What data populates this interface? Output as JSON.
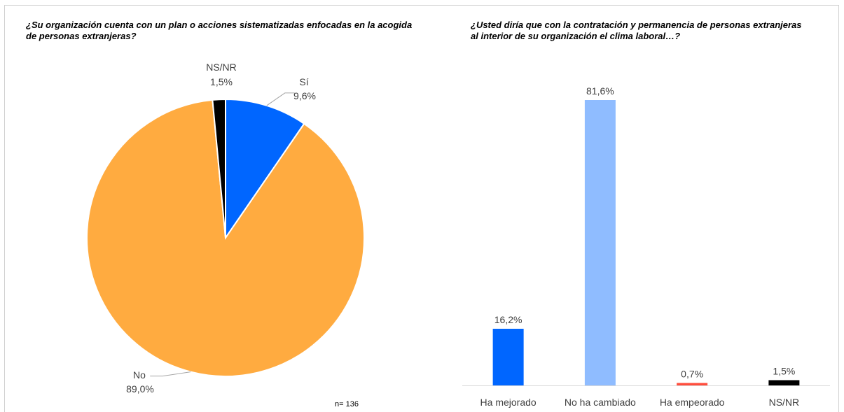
{
  "charts": {
    "left": {
      "title": "¿Su organización cuenta con un plan o acciones sistematizadas enfocadas en la acogida de personas extranjeras?",
      "note": "n= 136"
    },
    "right": {
      "title": "¿Usted diría que con la contratación y permanencia de personas extranjeras al interior de su organización el clima laboral…?"
    }
  },
  "chart_data": [
    {
      "type": "pie",
      "title": "¿Su organización cuenta con un plan o acciones sistematizadas enfocadas en la acogida de personas extranjeras?",
      "slices": [
        {
          "label": "Sí",
          "value": 9.6,
          "value_label": "9,6%",
          "color": "#0066ff"
        },
        {
          "label": "No",
          "value": 89.0,
          "value_label": "89,0%",
          "color": "#ffab40"
        },
        {
          "label": "NS/NR",
          "value": 1.5,
          "value_label": "1,5%",
          "color": "#000000"
        }
      ],
      "annotation": "n= 136"
    },
    {
      "type": "bar",
      "title": "¿Usted diría que con la contratación y permanencia de personas extranjeras al interior de su organización el clima laboral…?",
      "categories": [
        "Ha mejorado",
        "No ha cambiado",
        "Ha empeorado",
        "NS/NR"
      ],
      "values": [
        16.2,
        81.6,
        0.7,
        1.5
      ],
      "value_labels": [
        "16,2%",
        "81,6%",
        "0,7%",
        "1,5%"
      ],
      "colors": [
        "#0066ff",
        "#8fbcff",
        "#ff4d3d",
        "#000000"
      ],
      "ylim": [
        0,
        81.6
      ],
      "grid": false
    }
  ]
}
